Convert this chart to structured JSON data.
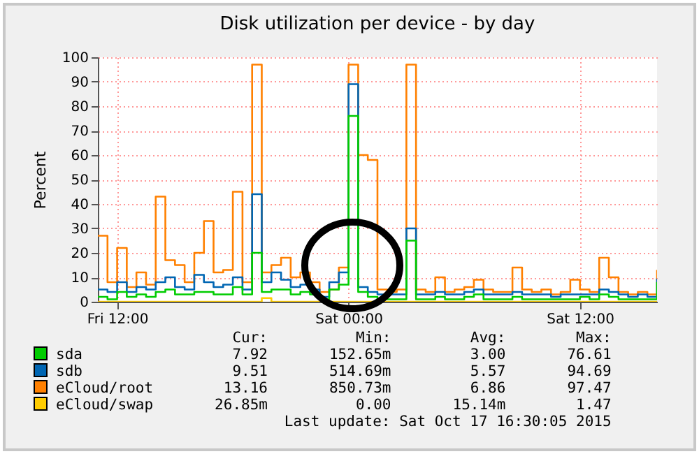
{
  "chart_data": {
    "type": "step",
    "title": "Disk utilization per device - by day",
    "ylabel": "Percent",
    "x": [
      "2015-10-16T11:00",
      "2015-10-16T11:30",
      "2015-10-16T12:00",
      "2015-10-16T12:30",
      "2015-10-16T13:00",
      "2015-10-16T13:30",
      "2015-10-16T14:00",
      "2015-10-16T14:30",
      "2015-10-16T15:00",
      "2015-10-16T15:30",
      "2015-10-16T16:00",
      "2015-10-16T16:30",
      "2015-10-16T17:00",
      "2015-10-16T17:30",
      "2015-10-16T18:00",
      "2015-10-16T18:30",
      "2015-10-16T19:00",
      "2015-10-16T19:30",
      "2015-10-16T20:00",
      "2015-10-16T20:30",
      "2015-10-16T21:00",
      "2015-10-16T21:30",
      "2015-10-16T22:00",
      "2015-10-16T22:30",
      "2015-10-16T23:00",
      "2015-10-16T23:30",
      "2015-10-17T00:00",
      "2015-10-17T00:30",
      "2015-10-17T01:00",
      "2015-10-17T01:30",
      "2015-10-17T02:00",
      "2015-10-17T02:30",
      "2015-10-17T03:00",
      "2015-10-17T03:30",
      "2015-10-17T04:00",
      "2015-10-17T04:30",
      "2015-10-17T05:00",
      "2015-10-17T05:30",
      "2015-10-17T06:00",
      "2015-10-17T06:30",
      "2015-10-17T07:00",
      "2015-10-17T07:30",
      "2015-10-17T08:00",
      "2015-10-17T08:30",
      "2015-10-17T09:00",
      "2015-10-17T09:30",
      "2015-10-17T10:00",
      "2015-10-17T10:30",
      "2015-10-17T11:00",
      "2015-10-17T11:30",
      "2015-10-17T12:00",
      "2015-10-17T12:30",
      "2015-10-17T13:00",
      "2015-10-17T13:30",
      "2015-10-17T14:00",
      "2015-10-17T14:30",
      "2015-10-17T15:00",
      "2015-10-17T15:30",
      "2015-10-17T16:00"
    ],
    "xlim": [
      "2015-10-16T11:00",
      "2015-10-17T16:00"
    ],
    "xticks": [
      {
        "value": "2015-10-16T12:00",
        "label": "Fri 12:00"
      },
      {
        "value": "2015-10-17T00:00",
        "label": "Sat 00:00"
      },
      {
        "value": "2015-10-17T12:00",
        "label": "Sat 12:00"
      }
    ],
    "ylim": [
      0,
      100
    ],
    "yticks": [
      0,
      10,
      20,
      30,
      40,
      50,
      60,
      70,
      80,
      90,
      100
    ],
    "grid": true,
    "legend": "bottom",
    "series": [
      {
        "name": "eCloud/swap",
        "color": "#ffcc00",
        "values": [
          0,
          0,
          0,
          0,
          0,
          0,
          0,
          0,
          0,
          0,
          0,
          0,
          0,
          0,
          0,
          0,
          0,
          1.5,
          0,
          0,
          0,
          0,
          0,
          0,
          0,
          0,
          0,
          0,
          0,
          0,
          0,
          0,
          0,
          0,
          0,
          0,
          0,
          0,
          0,
          0,
          0,
          0,
          0,
          0,
          0,
          0,
          0,
          0,
          0,
          0,
          0,
          0,
          0,
          0,
          0,
          0,
          0,
          0,
          0
        ]
      },
      {
        "name": "eCloud/root",
        "color": "#ff8000",
        "values": [
          27,
          8,
          22,
          6,
          12,
          7,
          43,
          17,
          15,
          8,
          20,
          33,
          12,
          13,
          45,
          8,
          97,
          12,
          15,
          18,
          10,
          12,
          8,
          4,
          5,
          14,
          97,
          60,
          58,
          5,
          4,
          5,
          97,
          5,
          4,
          10,
          4,
          5,
          6,
          9,
          5,
          4,
          4,
          14,
          5,
          4,
          5,
          3,
          4,
          9,
          5,
          4,
          18,
          10,
          4,
          3,
          4,
          3,
          13
        ]
      },
      {
        "name": "sdb",
        "color": "#0066b3",
        "values": [
          5,
          4,
          8,
          4,
          6,
          5,
          8,
          10,
          6,
          5,
          11,
          8,
          6,
          7,
          10,
          5,
          44,
          8,
          12,
          9,
          6,
          7,
          5,
          2,
          8,
          12,
          89,
          6,
          4,
          3,
          3,
          3,
          30,
          3,
          3,
          4,
          3,
          3,
          4,
          5,
          3,
          3,
          3,
          4,
          3,
          3,
          3,
          2,
          3,
          3,
          3,
          3,
          5,
          4,
          3,
          2,
          3,
          2,
          9.5
        ]
      },
      {
        "name": "sda",
        "color": "#00cc00",
        "values": [
          2,
          1,
          4,
          2,
          3,
          2,
          4,
          5,
          3,
          3,
          4,
          4,
          3,
          3,
          6,
          3,
          20,
          4,
          5,
          5,
          3,
          4,
          3,
          1,
          5,
          7,
          76,
          4,
          2,
          1,
          1,
          1,
          25,
          1,
          1,
          2,
          1,
          1,
          2,
          3,
          1,
          1,
          1,
          2,
          1,
          1,
          1,
          1,
          1,
          1,
          2,
          1,
          3,
          2,
          1,
          1,
          1,
          1,
          8
        ]
      }
    ],
    "annotations": [
      "Cur:",
      "Min:",
      "Avg:",
      "Max:",
      "26.85m",
      "0.00",
      "15.14m",
      "1.47",
      "13.16",
      "850.73m",
      "6.86",
      "97.47",
      "9.51",
      "514.69m",
      "5.57",
      "94.69",
      "7.92",
      "152.65m",
      "3.00",
      "76.61",
      "Last update: Sat Oct 17 16:30:05 2015"
    ]
  }
}
